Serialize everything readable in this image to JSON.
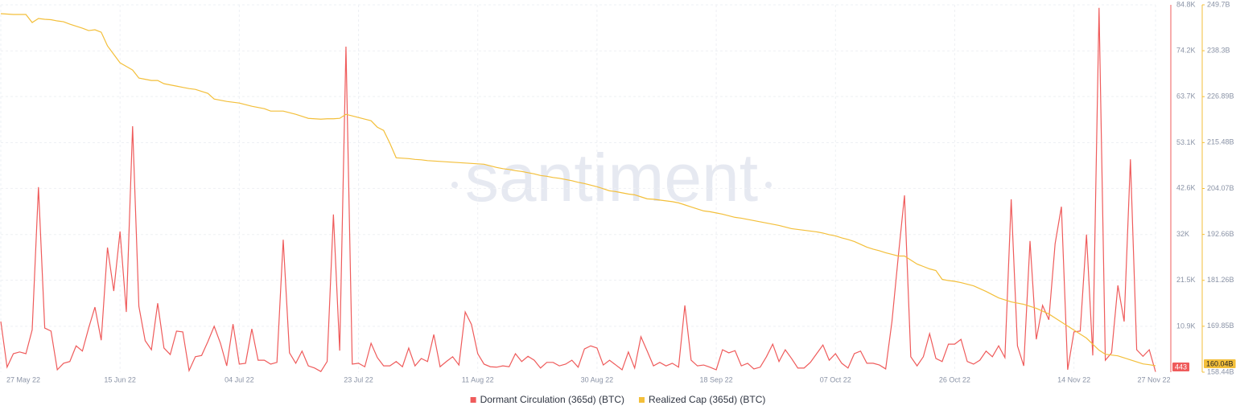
{
  "chart_data": {
    "type": "line",
    "watermark": "santiment",
    "categories": [
      "27 May 22",
      null,
      null,
      null,
      null,
      null,
      null,
      null,
      null,
      null,
      null,
      null,
      null,
      null,
      null,
      null,
      null,
      null,
      null,
      "15 Jun 22",
      null,
      null,
      null,
      null,
      null,
      null,
      null,
      null,
      null,
      null,
      null,
      null,
      null,
      null,
      null,
      null,
      null,
      null,
      "04 Jul 22",
      null,
      null,
      null,
      null,
      null,
      null,
      null,
      null,
      null,
      null,
      null,
      null,
      null,
      null,
      null,
      null,
      null,
      null,
      "23 Jul 22",
      null,
      null,
      null,
      null,
      null,
      null,
      null,
      null,
      null,
      null,
      null,
      null,
      null,
      null,
      null,
      null,
      null,
      null,
      "11 Aug 22",
      null,
      null,
      null,
      null,
      null,
      null,
      null,
      null,
      null,
      null,
      null,
      null,
      null,
      null,
      null,
      null,
      null,
      null,
      "30 Aug 22",
      null,
      null,
      null,
      null,
      null,
      null,
      null,
      null,
      null,
      null,
      null,
      null,
      null,
      null,
      null,
      null,
      null,
      null,
      "18 Sep 22",
      null,
      null,
      null,
      null,
      null,
      null,
      null,
      null,
      null,
      null,
      null,
      null,
      null,
      null,
      null,
      null,
      null,
      null,
      "07 Oct 22",
      null,
      null,
      null,
      null,
      null,
      null,
      null,
      null,
      null,
      null,
      null,
      null,
      null,
      null,
      null,
      null,
      null,
      null,
      "26 Oct 22",
      null,
      null,
      null,
      null,
      null,
      null,
      null,
      null,
      null,
      null,
      null,
      null,
      null,
      null,
      null,
      null,
      null,
      null,
      "14 Nov 22",
      null,
      null,
      null,
      null,
      null,
      null,
      null,
      null,
      null,
      null,
      null,
      null,
      "27 Nov 22"
    ],
    "series": [
      {
        "name": "Dormant Circulation (365d) (BTC)",
        "color": "#ef5b5b",
        "axis": "y",
        "values": [
          12000,
          1500,
          4600,
          5000,
          4600,
          10100,
          42900,
          10500,
          9800,
          900,
          2400,
          2800,
          6400,
          5200,
          10500,
          15300,
          7700,
          29000,
          19000,
          32700,
          14200,
          56900,
          15500,
          7600,
          5500,
          16200,
          5900,
          4400,
          9800,
          9600,
          700,
          3900,
          4200,
          7400,
          10900,
          7000,
          1800,
          11400,
          2200,
          2400,
          10300,
          3100,
          3100,
          2200,
          2600,
          30800,
          4800,
          2400,
          5200,
          1800,
          1300,
          500,
          2800,
          36600,
          5300,
          75200,
          2200,
          2400,
          1600,
          7000,
          3700,
          1800,
          1800,
          2800,
          1600,
          5900,
          1800,
          3500,
          2800,
          9000,
          1600,
          2800,
          3900,
          2000,
          14200,
          11300,
          4600,
          2200,
          1600,
          1500,
          1800,
          1600,
          4600,
          2800,
          4000,
          3100,
          1300,
          2600,
          2600,
          1800,
          2200,
          3100,
          1500,
          5700,
          6400,
          5900,
          2000,
          3100,
          2000,
          900,
          5000,
          1300,
          8500,
          5200,
          1800,
          2600,
          1800,
          2400,
          1500,
          15700,
          3100,
          1800,
          2000,
          1500,
          900,
          5500,
          4800,
          5300,
          1800,
          2400,
          1100,
          1500,
          3900,
          6800,
          2800,
          5500,
          3500,
          1300,
          1300,
          2600,
          4600,
          6600,
          3100,
          4600,
          2400,
          1300,
          4600,
          5200,
          2400,
          2400,
          2000,
          1100,
          12000,
          26800,
          41000,
          3900,
          1800,
          3900,
          9200,
          3500,
          2800,
          6800,
          6800,
          7900,
          2800,
          2200,
          3100,
          5200,
          3900,
          6400,
          3700,
          40100,
          6400,
          1800,
          30500,
          7900,
          15700,
          12400,
          29900,
          38400,
          900,
          9600,
          9800,
          32000,
          4200,
          84100,
          3100,
          4800,
          20300,
          12000,
          49300,
          5500,
          4000,
          5500,
          443
        ]
      },
      {
        "name": "Realized Cap (365d) (BTC)",
        "color": "#f3bf3a",
        "axis": "y2",
        "values": [
          247.5,
          247.4,
          247.3,
          247.3,
          247.3,
          245.3,
          246.3,
          246.1,
          246.0,
          245.7,
          245.5,
          244.9,
          244.4,
          243.9,
          243.3,
          243.5,
          242.9,
          239.5,
          237.4,
          235.3,
          234.4,
          233.5,
          231.5,
          231.2,
          230.9,
          230.9,
          230.1,
          229.8,
          229.5,
          229.2,
          228.9,
          228.7,
          228.2,
          227.7,
          226.3,
          226.0,
          225.7,
          225.5,
          225.3,
          224.9,
          224.5,
          224.2,
          223.9,
          223.3,
          223.3,
          223.3,
          222.9,
          222.5,
          222.0,
          221.5,
          221.4,
          221.3,
          221.4,
          221.4,
          221.5,
          222.5,
          222.1,
          221.7,
          221.3,
          220.9,
          219.3,
          218.5,
          215.3,
          211.7,
          211.6,
          211.5,
          211.3,
          211.2,
          211.0,
          210.9,
          210.8,
          210.7,
          210.6,
          210.5,
          210.4,
          210.3,
          210.2,
          210.1,
          209.7,
          209.3,
          209.0,
          208.8,
          208.5,
          208.3,
          208.0,
          207.7,
          207.3,
          207.1,
          206.8,
          206.6,
          206.3,
          206.0,
          205.6,
          205.3,
          204.9,
          204.5,
          204.0,
          203.5,
          203.3,
          203.0,
          202.7,
          202.5,
          202.0,
          201.5,
          201.4,
          201.2,
          201.0,
          200.8,
          200.5,
          200.0,
          199.5,
          199.0,
          198.5,
          198.3,
          198.0,
          197.7,
          197.3,
          196.9,
          196.7,
          196.4,
          196.1,
          195.8,
          195.5,
          195.2,
          194.9,
          194.5,
          194.1,
          193.9,
          193.7,
          193.5,
          193.3,
          193.0,
          192.6,
          192.3,
          191.8,
          191.4,
          190.9,
          190.2,
          189.5,
          189.0,
          188.6,
          188.1,
          187.7,
          187.3,
          187.3,
          186.3,
          185.3,
          184.7,
          184.1,
          183.7,
          181.5,
          181.2,
          181.0,
          180.7,
          180.3,
          179.9,
          179.2,
          178.5,
          177.7,
          176.9,
          176.4,
          175.9,
          175.6,
          175.3,
          174.8,
          174.3,
          173.6,
          172.9,
          171.9,
          170.9,
          169.9,
          168.9,
          167.9,
          166.9,
          165.4,
          163.9,
          162.9,
          162.7,
          162.5,
          162.0,
          161.5,
          161.0,
          160.5,
          160.3,
          160.04
        ],
        "value_labels": [
          null,
          null,
          null,
          null,
          null,
          null,
          null,
          null,
          null,
          null,
          null,
          null,
          null,
          null,
          null,
          null,
          null,
          null,
          null,
          null,
          null,
          null,
          null,
          null,
          null,
          null,
          null,
          null,
          null,
          null,
          null,
          null,
          null,
          null,
          null,
          null,
          null,
          null,
          null,
          null,
          null,
          null,
          null,
          null,
          null,
          null,
          null,
          null,
          null,
          null,
          null,
          null,
          null,
          null,
          null,
          null,
          null,
          null,
          null,
          null,
          null,
          null,
          null,
          null,
          null,
          null,
          null,
          null,
          null,
          null,
          null,
          null,
          null,
          null,
          null,
          null,
          null,
          null,
          null,
          null,
          null,
          null,
          null,
          null,
          null,
          null,
          null,
          null,
          null,
          null,
          null,
          null,
          null,
          null,
          null,
          null,
          null,
          null,
          null,
          null,
          null,
          null,
          null,
          null,
          null,
          null,
          null,
          null,
          null,
          null,
          null,
          null,
          null,
          null,
          null,
          null,
          null,
          null,
          null,
          null,
          null,
          null,
          null,
          null,
          null,
          null,
          null,
          null,
          null,
          null,
          null,
          null,
          null,
          null,
          null,
          null,
          null,
          null,
          null,
          null,
          null,
          null,
          null,
          null,
          null,
          null,
          null,
          null,
          null,
          null,
          null,
          null,
          null,
          null,
          null,
          null,
          null,
          null,
          null,
          null,
          null,
          null,
          null,
          null,
          null,
          null,
          null,
          null,
          null,
          null,
          null,
          null,
          null,
          null,
          null,
          null,
          null,
          null,
          null,
          null,
          null,
          null,
          null,
          null,
          "160.04B"
        ]
      }
    ],
    "ylim": [
      350,
      84800
    ],
    "yticks": [
      {
        "value": 10900,
        "label": "10.9K"
      },
      {
        "value": 21500,
        "label": "21.5K"
      },
      {
        "value": 32000,
        "label": "32K"
      },
      {
        "value": 42600,
        "label": "42.6K"
      },
      {
        "value": 53100,
        "label": "53.1K"
      },
      {
        "value": 63700,
        "label": "63.7K"
      },
      {
        "value": 74200,
        "label": "74.2K"
      },
      {
        "value": 84800,
        "label": "84.8K"
      }
    ],
    "y2lim": [
      158.44,
      249.7
    ],
    "y2ticks": [
      {
        "value": 158.44,
        "label": "158.44B"
      },
      {
        "value": 169.85,
        "label": "169.85B"
      },
      {
        "value": 181.26,
        "label": "181.26B"
      },
      {
        "value": 192.66,
        "label": "192.66B"
      },
      {
        "value": 204.07,
        "label": "204.07B"
      },
      {
        "value": 215.48,
        "label": "215.48B"
      },
      {
        "value": 226.89,
        "label": "226.89B"
      },
      {
        "value": 238.3,
        "label": "238.3B"
      },
      {
        "value": 249.7,
        "label": "249.7B"
      }
    ],
    "grid": true
  }
}
